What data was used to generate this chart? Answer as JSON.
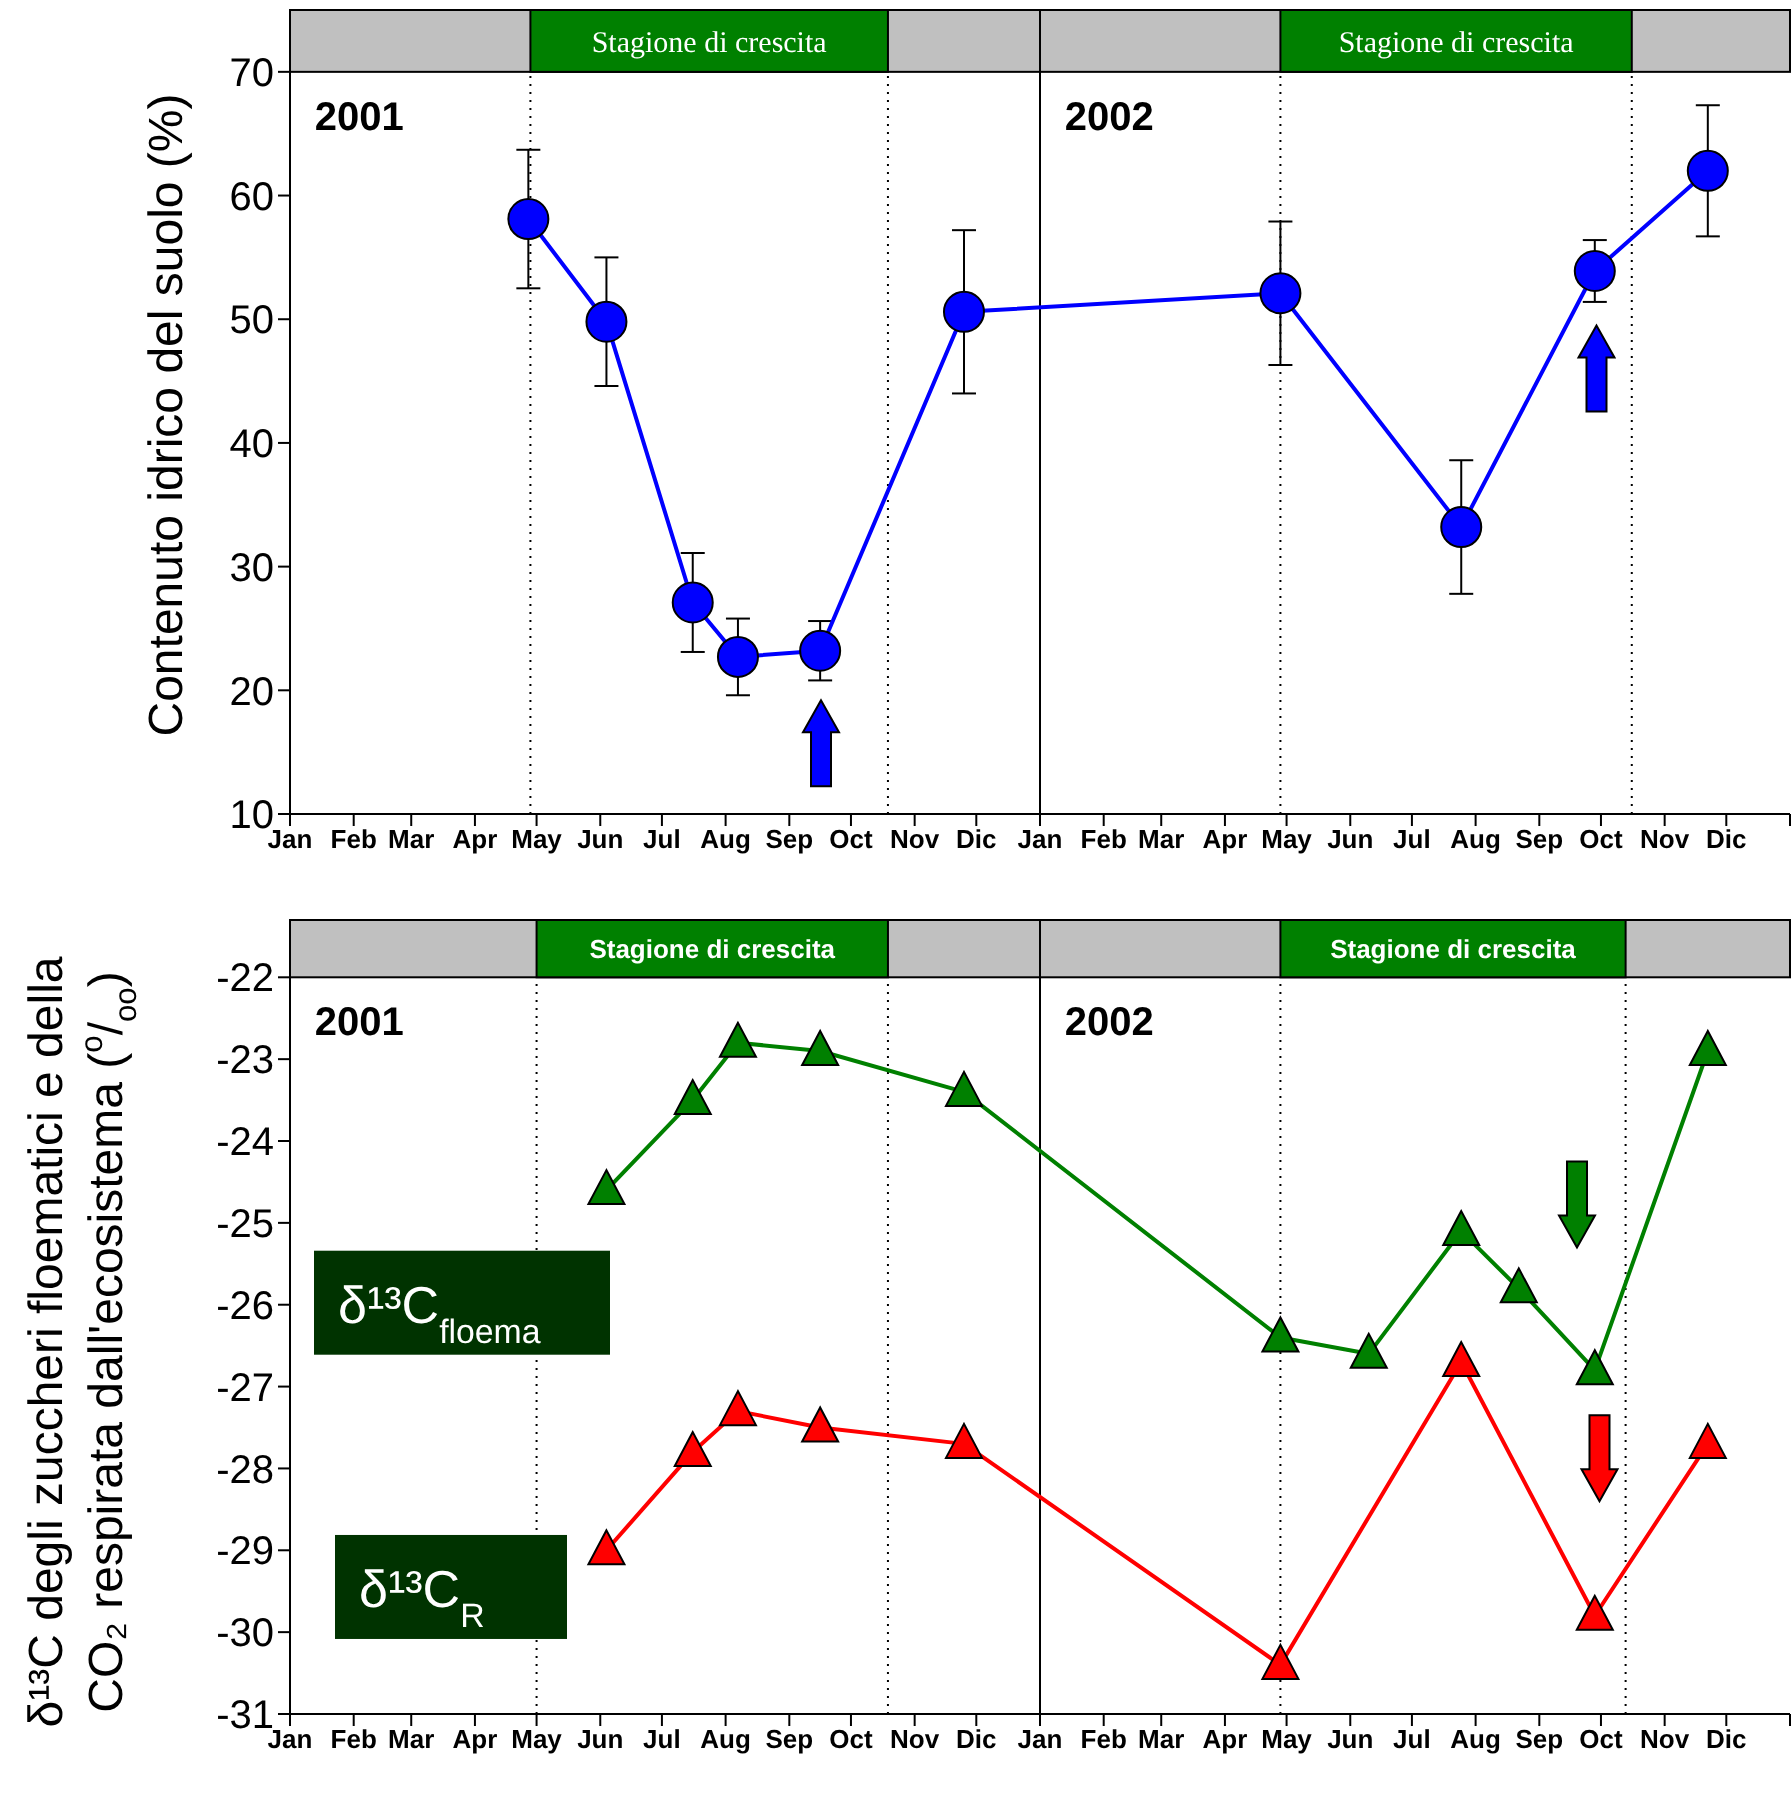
{
  "chart_data": [
    {
      "type": "line",
      "ylabel": "Contenuto idrico del suolo (%)",
      "marker": "circle",
      "xlim": [
        "2001-01-01",
        "2003-01-01"
      ],
      "xticks": [
        {
          "value": "2001-01-01",
          "label": "Jan"
        },
        {
          "value": "2001-02-01",
          "label": "Feb"
        },
        {
          "value": "2001-03-01",
          "label": "Mar"
        },
        {
          "value": "2001-04-01",
          "label": "Apr"
        },
        {
          "value": "2001-05-01",
          "label": "May"
        },
        {
          "value": "2001-06-01",
          "label": "Jun"
        },
        {
          "value": "2001-07-01",
          "label": "Jul"
        },
        {
          "value": "2001-08-01",
          "label": "Aug"
        },
        {
          "value": "2001-09-01",
          "label": "Sep"
        },
        {
          "value": "2001-10-01",
          "label": "Oct"
        },
        {
          "value": "2001-11-01",
          "label": "Nov"
        },
        {
          "value": "2001-12-01",
          "label": "Dic"
        },
        {
          "value": "2002-01-01",
          "label": "Jan"
        },
        {
          "value": "2002-02-01",
          "label": "Feb"
        },
        {
          "value": "2002-03-01",
          "label": "Mar"
        },
        {
          "value": "2002-04-01",
          "label": "Apr"
        },
        {
          "value": "2002-05-01",
          "label": "May"
        },
        {
          "value": "2002-06-01",
          "label": "Jun"
        },
        {
          "value": "2002-07-01",
          "label": "Jul"
        },
        {
          "value": "2002-08-01",
          "label": "Aug"
        },
        {
          "value": "2002-09-01",
          "label": "Sep"
        },
        {
          "value": "2002-10-01",
          "label": "Oct"
        },
        {
          "value": "2002-11-01",
          "label": "Nov"
        },
        {
          "value": "2002-12-01",
          "label": "Dic"
        },
        {
          "value": "2003-01-01",
          "label": null
        }
      ],
      "ylim": [
        10,
        75
      ],
      "yticks": [
        10,
        20,
        30,
        40,
        50,
        60,
        70
      ],
      "series": [
        {
          "color": "#0000ff",
          "x": [
            "2001-04-27",
            "2001-06-04",
            "2001-07-16",
            "2001-08-07",
            "2001-09-16",
            "2001-11-25",
            "2002-04-28",
            "2002-07-25",
            "2002-09-28",
            "2002-11-22"
          ],
          "values": [
            58.1,
            49.8,
            27.1,
            22.7,
            23.2,
            50.6,
            52.1,
            33.2,
            53.9,
            62.0
          ],
          "errors": [
            5.6,
            5.2,
            4.0,
            3.1,
            2.4,
            6.6,
            5.8,
            5.4,
            2.5,
            5.3
          ]
        }
      ],
      "ref_lines": [
        {
          "axis": "x",
          "value": "2002-01-01"
        },
        {
          "axis": "x",
          "value": "2001-04-28",
          "line_style": "dotted"
        },
        {
          "axis": "x",
          "value": "2001-10-19",
          "line_style": "dotted"
        },
        {
          "axis": "x",
          "value": "2002-04-28",
          "line_style": "dotted"
        },
        {
          "axis": "x",
          "value": "2002-10-16",
          "line_style": "dotted"
        }
      ],
      "annotations": [
        "2001",
        "2002",
        "Stagione di crescita",
        "Stagione di crescita"
      ]
    },
    {
      "type": "line",
      "ylabel": "δ¹³C degli zuccheri floematici e della CO₂ respirata dall'ecosistema ($^{o}$/$_{oo}$)",
      "marker": "triangle",
      "xlim": [
        "2001-01-01",
        "2003-01-01"
      ],
      "xticks": [
        {
          "value": "2001-01-01",
          "label": "Jan"
        },
        {
          "value": "2001-02-01",
          "label": "Feb"
        },
        {
          "value": "2001-03-01",
          "label": "Mar"
        },
        {
          "value": "2001-04-01",
          "label": "Apr"
        },
        {
          "value": "2001-05-01",
          "label": "May"
        },
        {
          "value": "2001-06-01",
          "label": "Jun"
        },
        {
          "value": "2001-07-01",
          "label": "Jul"
        },
        {
          "value": "2001-08-01",
          "label": "Aug"
        },
        {
          "value": "2001-09-01",
          "label": "Sep"
        },
        {
          "value": "2001-10-01",
          "label": "Oct"
        },
        {
          "value": "2001-11-01",
          "label": "Nov"
        },
        {
          "value": "2001-12-01",
          "label": "Dic"
        },
        {
          "value": "2002-01-01",
          "label": "Jan"
        },
        {
          "value": "2002-02-01",
          "label": "Feb"
        },
        {
          "value": "2002-03-01",
          "label": "Mar"
        },
        {
          "value": "2002-04-01",
          "label": "Apr"
        },
        {
          "value": "2002-05-01",
          "label": "May"
        },
        {
          "value": "2002-06-01",
          "label": "Jun"
        },
        {
          "value": "2002-07-01",
          "label": "Jul"
        },
        {
          "value": "2002-08-01",
          "label": "Aug"
        },
        {
          "value": "2002-09-01",
          "label": "Sep"
        },
        {
          "value": "2002-10-01",
          "label": "Oct"
        },
        {
          "value": "2002-11-01",
          "label": "Nov"
        },
        {
          "value": "2002-12-01",
          "label": "Dic"
        },
        {
          "value": "2003-01-01",
          "label": null
        }
      ],
      "ylim": [
        -31,
        -21.3
      ],
      "yticks": [
        -31,
        -30,
        -29,
        -28,
        -27,
        -26,
        -25,
        -24,
        -23,
        -22
      ],
      "series": [
        {
          "name": "δ¹³C$_{floema}$",
          "color": "#008000",
          "x": [
            "2001-06-04",
            "2001-07-16",
            "2001-08-07",
            "2001-09-16",
            "2001-11-25",
            "2002-04-28",
            "2002-06-10",
            "2002-07-25",
            "2002-08-22",
            "2002-09-28",
            "2002-11-22"
          ],
          "values": [
            -24.6,
            -23.5,
            -22.8,
            -22.9,
            -23.4,
            -26.4,
            -26.6,
            -25.1,
            -25.8,
            -26.8,
            -22.9
          ]
        },
        {
          "name": "δ¹³C$_{R}$",
          "color": "#ff0000",
          "x": [
            "2001-06-04",
            "2001-07-16",
            "2001-08-07",
            "2001-09-16",
            "2001-11-25",
            "2002-04-28",
            "2002-07-25",
            "2002-09-28",
            "2002-11-22"
          ],
          "values": [
            -29.0,
            -27.8,
            -27.3,
            -27.5,
            -27.7,
            -30.4,
            -26.7,
            -29.8,
            -27.7
          ]
        }
      ],
      "ref_lines": [
        {
          "axis": "x",
          "value": "2002-01-01"
        },
        {
          "axis": "x",
          "value": "2001-05-01",
          "line_style": "dotted"
        },
        {
          "axis": "x",
          "value": "2001-10-19",
          "line_style": "dotted"
        },
        {
          "axis": "x",
          "value": "2002-04-28",
          "line_style": "dotted"
        },
        {
          "axis": "x",
          "value": "2002-10-13",
          "line_style": "dotted"
        }
      ],
      "annotations": [
        "2001",
        "2002",
        "Stagione di crescita",
        "Stagione di crescita"
      ]
    }
  ]
}
